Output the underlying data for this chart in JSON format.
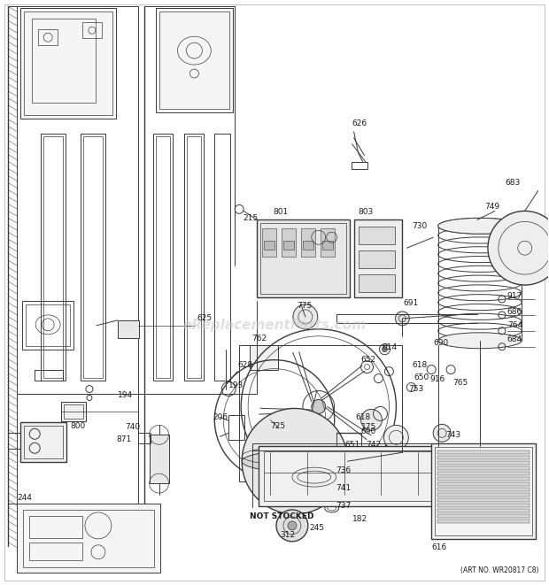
{
  "bg_color": "#ffffff",
  "line_color": "#3a3a3a",
  "art_no_text": "(ART NO. WR20817 C8)",
  "watermark_text": "eReplacementParts.com",
  "watermark_color": "#c8c8c8",
  "fig_width": 6.2,
  "fig_height": 6.61,
  "dpi": 100
}
